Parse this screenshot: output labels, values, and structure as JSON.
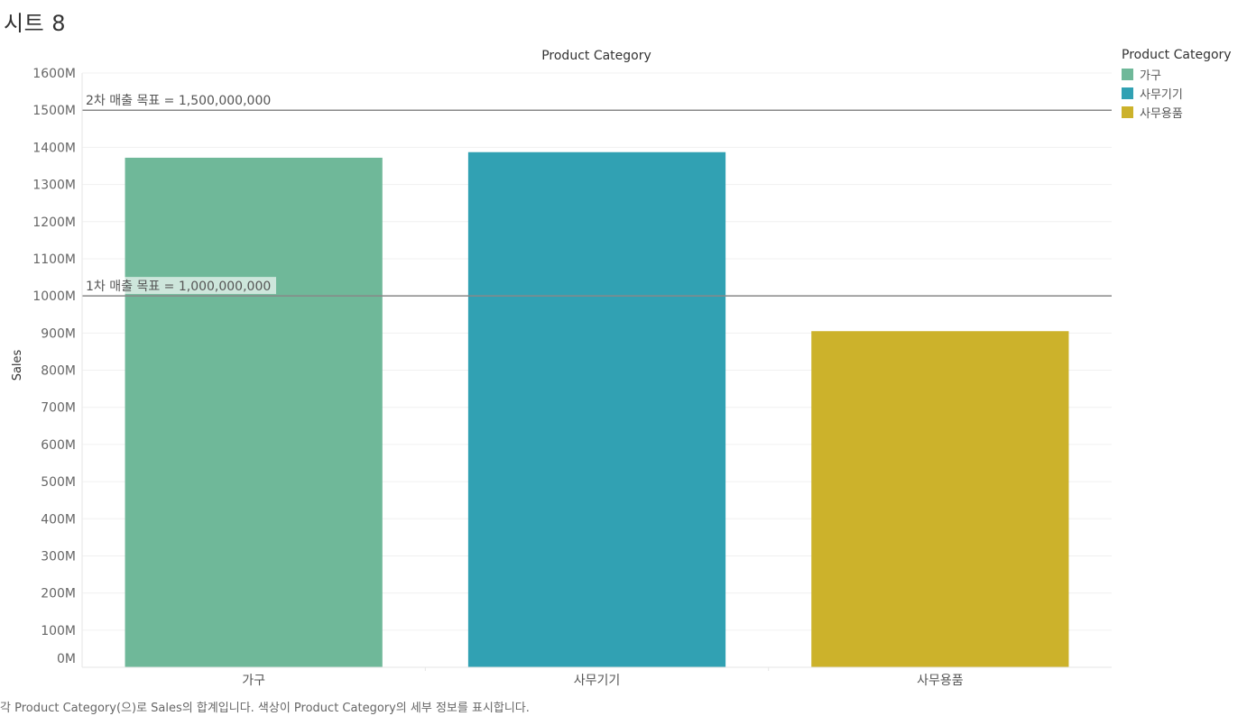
{
  "sheet": {
    "title": "시트 8"
  },
  "caption": "각 Product Category(으)로 Sales의 합계입니다.  색상이 Product Category의 세부 정보를 표시합니다.",
  "legend": {
    "title": "Product Category",
    "items": [
      {
        "label": "가구",
        "color": "#6fb899"
      },
      {
        "label": "사무기기",
        "color": "#31a1b3"
      },
      {
        "label": "사무용품",
        "color": "#ccb22b"
      }
    ]
  },
  "chart_data": {
    "type": "bar",
    "title": "Product Category",
    "xlabel": "",
    "ylabel": "Sales",
    "categories": [
      "가구",
      "사무기기",
      "사무용품"
    ],
    "values": [
      1372000000,
      1387000000,
      905000000
    ],
    "colors": [
      "#6fb899",
      "#31a1b3",
      "#ccb22b"
    ],
    "ylim": [
      0,
      1600000000
    ],
    "yticks": [
      {
        "value": 0,
        "label": "0M"
      },
      {
        "value": 100000000,
        "label": "100M"
      },
      {
        "value": 200000000,
        "label": "200M"
      },
      {
        "value": 300000000,
        "label": "300M"
      },
      {
        "value": 400000000,
        "label": "400M"
      },
      {
        "value": 500000000,
        "label": "500M"
      },
      {
        "value": 600000000,
        "label": "600M"
      },
      {
        "value": 700000000,
        "label": "700M"
      },
      {
        "value": 800000000,
        "label": "800M"
      },
      {
        "value": 900000000,
        "label": "900M"
      },
      {
        "value": 1000000000,
        "label": "1000M"
      },
      {
        "value": 1100000000,
        "label": "1100M"
      },
      {
        "value": 1200000000,
        "label": "1200M"
      },
      {
        "value": 1300000000,
        "label": "1300M"
      },
      {
        "value": 1400000000,
        "label": "1400M"
      },
      {
        "value": 1500000000,
        "label": "1500M"
      },
      {
        "value": 1600000000,
        "label": "1600M"
      }
    ],
    "grid": true,
    "reference_lines": [
      {
        "value": 1500000000,
        "label": "2차 매출 목표 = 1,500,000,000"
      },
      {
        "value": 1000000000,
        "label": "1차 매출 목표 = 1,000,000,000"
      }
    ],
    "legend_position": "right"
  }
}
